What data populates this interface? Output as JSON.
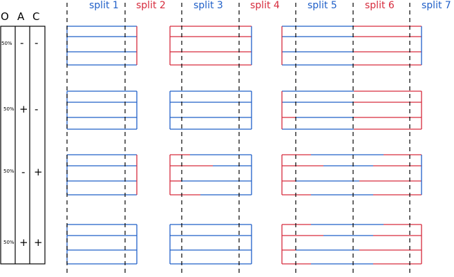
{
  "colors": {
    "blue": "#1f5fc8",
    "red": "#d62a3c",
    "black": "#000000"
  },
  "splits": [
    {
      "label": "split 1",
      "color": "blue"
    },
    {
      "label": "split 2",
      "color": "red"
    },
    {
      "label": "split 3",
      "color": "blue"
    },
    {
      "label": "split 4",
      "color": "red"
    },
    {
      "label": "split 5",
      "color": "blue"
    },
    {
      "label": "split 6",
      "color": "red"
    },
    {
      "label": "split 7",
      "color": "blue"
    }
  ],
  "columns": [
    "O",
    "A",
    "C"
  ],
  "rows": [
    {
      "pct": "50%",
      "a": "-",
      "c": "-"
    },
    {
      "pct": "50%",
      "a": "+",
      "c": "-"
    },
    {
      "pct": "50%",
      "a": "-",
      "c": "+"
    },
    {
      "pct": "50%",
      "a": "+",
      "c": "+"
    }
  ]
}
